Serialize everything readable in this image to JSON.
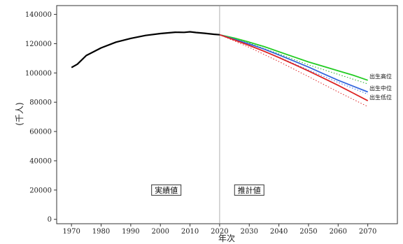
{
  "chart_data": {
    "type": "line",
    "title": "",
    "xlabel": "年次",
    "ylabel": "(千人)",
    "xlim": [
      1965,
      2080
    ],
    "ylim": [
      -3000,
      146000
    ],
    "x_ticks": [
      1970,
      1980,
      1990,
      2000,
      2010,
      2020,
      2030,
      2040,
      2050,
      2060,
      2070
    ],
    "y_ticks": [
      0,
      20000,
      40000,
      60000,
      80000,
      100000,
      120000,
      140000
    ],
    "grid": false,
    "divider_x": 2020,
    "annotations": [
      {
        "text": "実績値",
        "x": 2002,
        "y": 20000
      },
      {
        "text": "推計値",
        "x": 2030,
        "y": 20000
      }
    ],
    "series": [
      {
        "key": "actual",
        "color": "#000000",
        "style": "solid",
        "points": [
          [
            1970,
            103700
          ],
          [
            1972,
            106000
          ],
          [
            1975,
            111900
          ],
          [
            1980,
            117100
          ],
          [
            1985,
            121000
          ],
          [
            1990,
            123600
          ],
          [
            1995,
            125600
          ],
          [
            2000,
            126900
          ],
          [
            2005,
            127800
          ],
          [
            2008,
            127700
          ],
          [
            2010,
            128100
          ],
          [
            2012,
            127600
          ],
          [
            2015,
            127100
          ],
          [
            2018,
            126400
          ],
          [
            2020,
            126100
          ]
        ]
      },
      {
        "key": "high",
        "name": "出生高位",
        "color": "#22cc22",
        "style": "solid",
        "points": [
          [
            2020,
            126100
          ],
          [
            2025,
            123800
          ],
          [
            2030,
            121000
          ],
          [
            2035,
            118000
          ],
          [
            2040,
            114500
          ],
          [
            2045,
            111000
          ],
          [
            2050,
            107500
          ],
          [
            2055,
            104500
          ],
          [
            2060,
            101500
          ],
          [
            2065,
            98500
          ],
          [
            2070,
            95000
          ]
        ]
      },
      {
        "key": "mid",
        "name": "出生中位",
        "color": "#3366dd",
        "style": "solid",
        "points": [
          [
            2020,
            126100
          ],
          [
            2025,
            123000
          ],
          [
            2030,
            119800
          ],
          [
            2035,
            116300
          ],
          [
            2040,
            112300
          ],
          [
            2045,
            108200
          ],
          [
            2050,
            104000
          ],
          [
            2055,
            99500
          ],
          [
            2060,
            95000
          ],
          [
            2065,
            91000
          ],
          [
            2070,
            87000
          ]
        ]
      },
      {
        "key": "low",
        "name": "出生低位",
        "color": "#dd2222",
        "style": "solid",
        "points": [
          [
            2020,
            126100
          ],
          [
            2025,
            122500
          ],
          [
            2030,
            118800
          ],
          [
            2035,
            114800
          ],
          [
            2040,
            110500
          ],
          [
            2045,
            106000
          ],
          [
            2050,
            101300
          ],
          [
            2055,
            96500
          ],
          [
            2060,
            91500
          ],
          [
            2065,
            86300
          ],
          [
            2070,
            81000
          ]
        ]
      },
      {
        "key": "high_dotted",
        "color": "#22aa22",
        "style": "dotted",
        "points": [
          [
            2020,
            126100
          ],
          [
            2030,
            120300
          ],
          [
            2040,
            113000
          ],
          [
            2050,
            105500
          ],
          [
            2060,
            99000
          ],
          [
            2070,
            92500
          ]
        ]
      },
      {
        "key": "mid_dotted",
        "color": "#3366dd",
        "style": "dotted",
        "points": [
          [
            2020,
            126100
          ],
          [
            2030,
            119000
          ],
          [
            2040,
            110800
          ],
          [
            2050,
            102000
          ],
          [
            2060,
            93500
          ],
          [
            2070,
            85500
          ]
        ]
      },
      {
        "key": "low_dotted",
        "color": "#dd2222",
        "style": "dotted",
        "points": [
          [
            2020,
            126100
          ],
          [
            2030,
            117500
          ],
          [
            2040,
            107800
          ],
          [
            2050,
            97500
          ],
          [
            2060,
            87000
          ],
          [
            2070,
            77000
          ]
        ]
      }
    ]
  }
}
